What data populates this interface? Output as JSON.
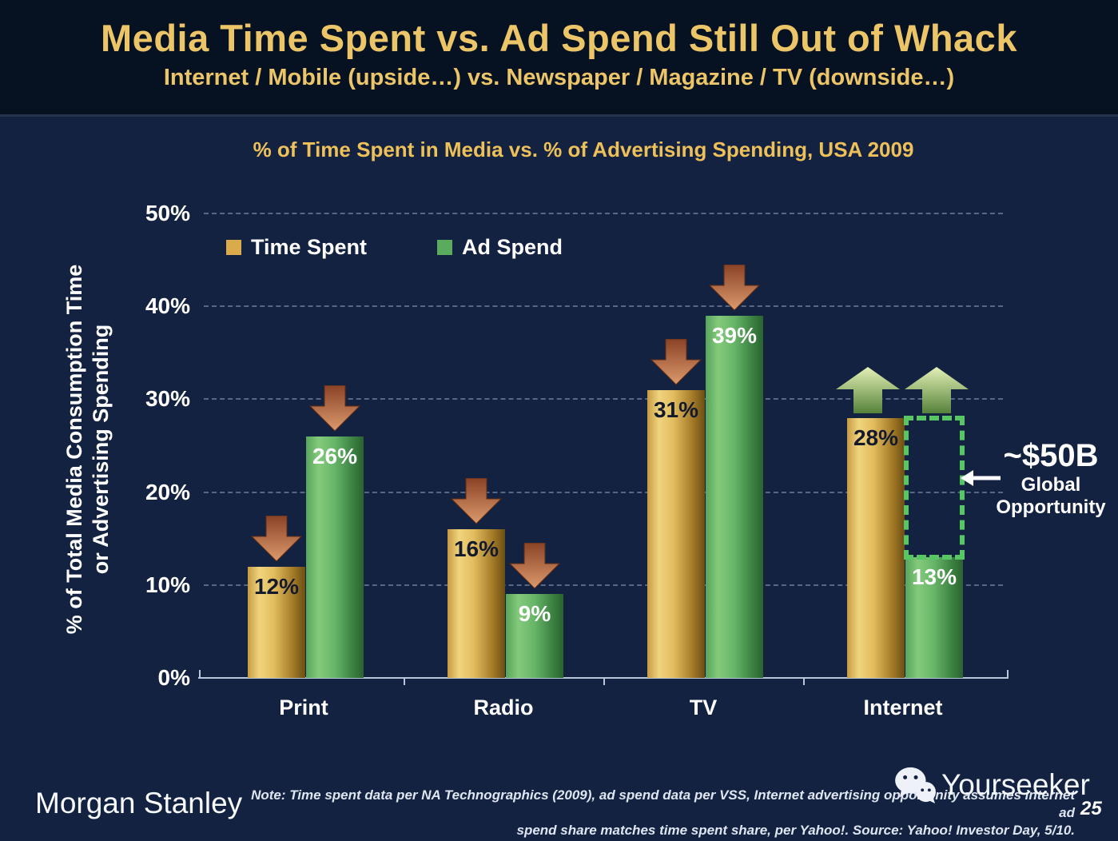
{
  "header": {
    "title": "Media Time Spent vs. Ad Spend Still Out of Whack",
    "subtitle": "Internet / Mobile (upside…) vs. Newspaper / Magazine / TV (downside…)"
  },
  "chart": {
    "title": "% of Time Spent in Media vs. % of Advertising Spending, USA 2009",
    "ylabel_line1": "% of Total Media Consumption Time",
    "ylabel_line2": "or Advertising Spending"
  },
  "legend": {
    "items": [
      {
        "label": "Time Spent",
        "color": "#d9ab4a"
      },
      {
        "label": "Ad Spend",
        "color": "#5aab5e"
      }
    ]
  },
  "chart_data": {
    "type": "bar",
    "title": "% of Time Spent in Media vs. % of Advertising Spending, USA 2009",
    "xlabel": "",
    "ylabel": "% of Total Media Consumption Time or Advertising Spending",
    "categories": [
      "Print",
      "Radio",
      "TV",
      "Internet"
    ],
    "series": [
      {
        "name": "Time Spent",
        "values": [
          12,
          16,
          31,
          28
        ],
        "color": "#d9ab4a",
        "label_color": "#141a2e"
      },
      {
        "name": "Ad Spend",
        "values": [
          26,
          9,
          39,
          13
        ],
        "color": "#5aab5e",
        "label_color": "#ffffff"
      }
    ],
    "ylim": [
      0,
      50
    ],
    "yticks": [
      0,
      10,
      20,
      30,
      40,
      50
    ],
    "ytick_suffix": "%",
    "grid": "horizontal-dashed",
    "legend_position": "top-left-inside",
    "annotations": {
      "down_arrow_categories": [
        "Print",
        "Radio",
        "TV"
      ],
      "up_arrow_category": "Internet",
      "up_arrow_count": 2,
      "opportunity_box": {
        "category": "Internet",
        "series": "Ad Spend",
        "from": 13,
        "to": 28
      }
    }
  },
  "annotation": {
    "value": "~$50B",
    "line1": "Global",
    "line2": "Opportunity"
  },
  "footer": {
    "brand": "Morgan Stanley",
    "note_line1": "Note: Time spent data per NA Technographics (2009), ad spend data per VSS, Internet advertising opportunity assumes internet ad",
    "note_line2": "spend share matches time spent share, per Yahoo!. Source: Yahoo! Investor Day, 5/10.",
    "watermark": "Yourseeker",
    "page_number": "25"
  },
  "colors": {
    "header_background": "#061122",
    "body_background": "#122240",
    "title_gold": "#ecc568",
    "bar_gold": "#d9ab4a",
    "bar_green": "#5aab5e",
    "down_arrow": "#c97a52",
    "up_arrow": "#a8c86e",
    "opportunity_dotted": "#56c763",
    "axis": "#b9c5d9"
  }
}
